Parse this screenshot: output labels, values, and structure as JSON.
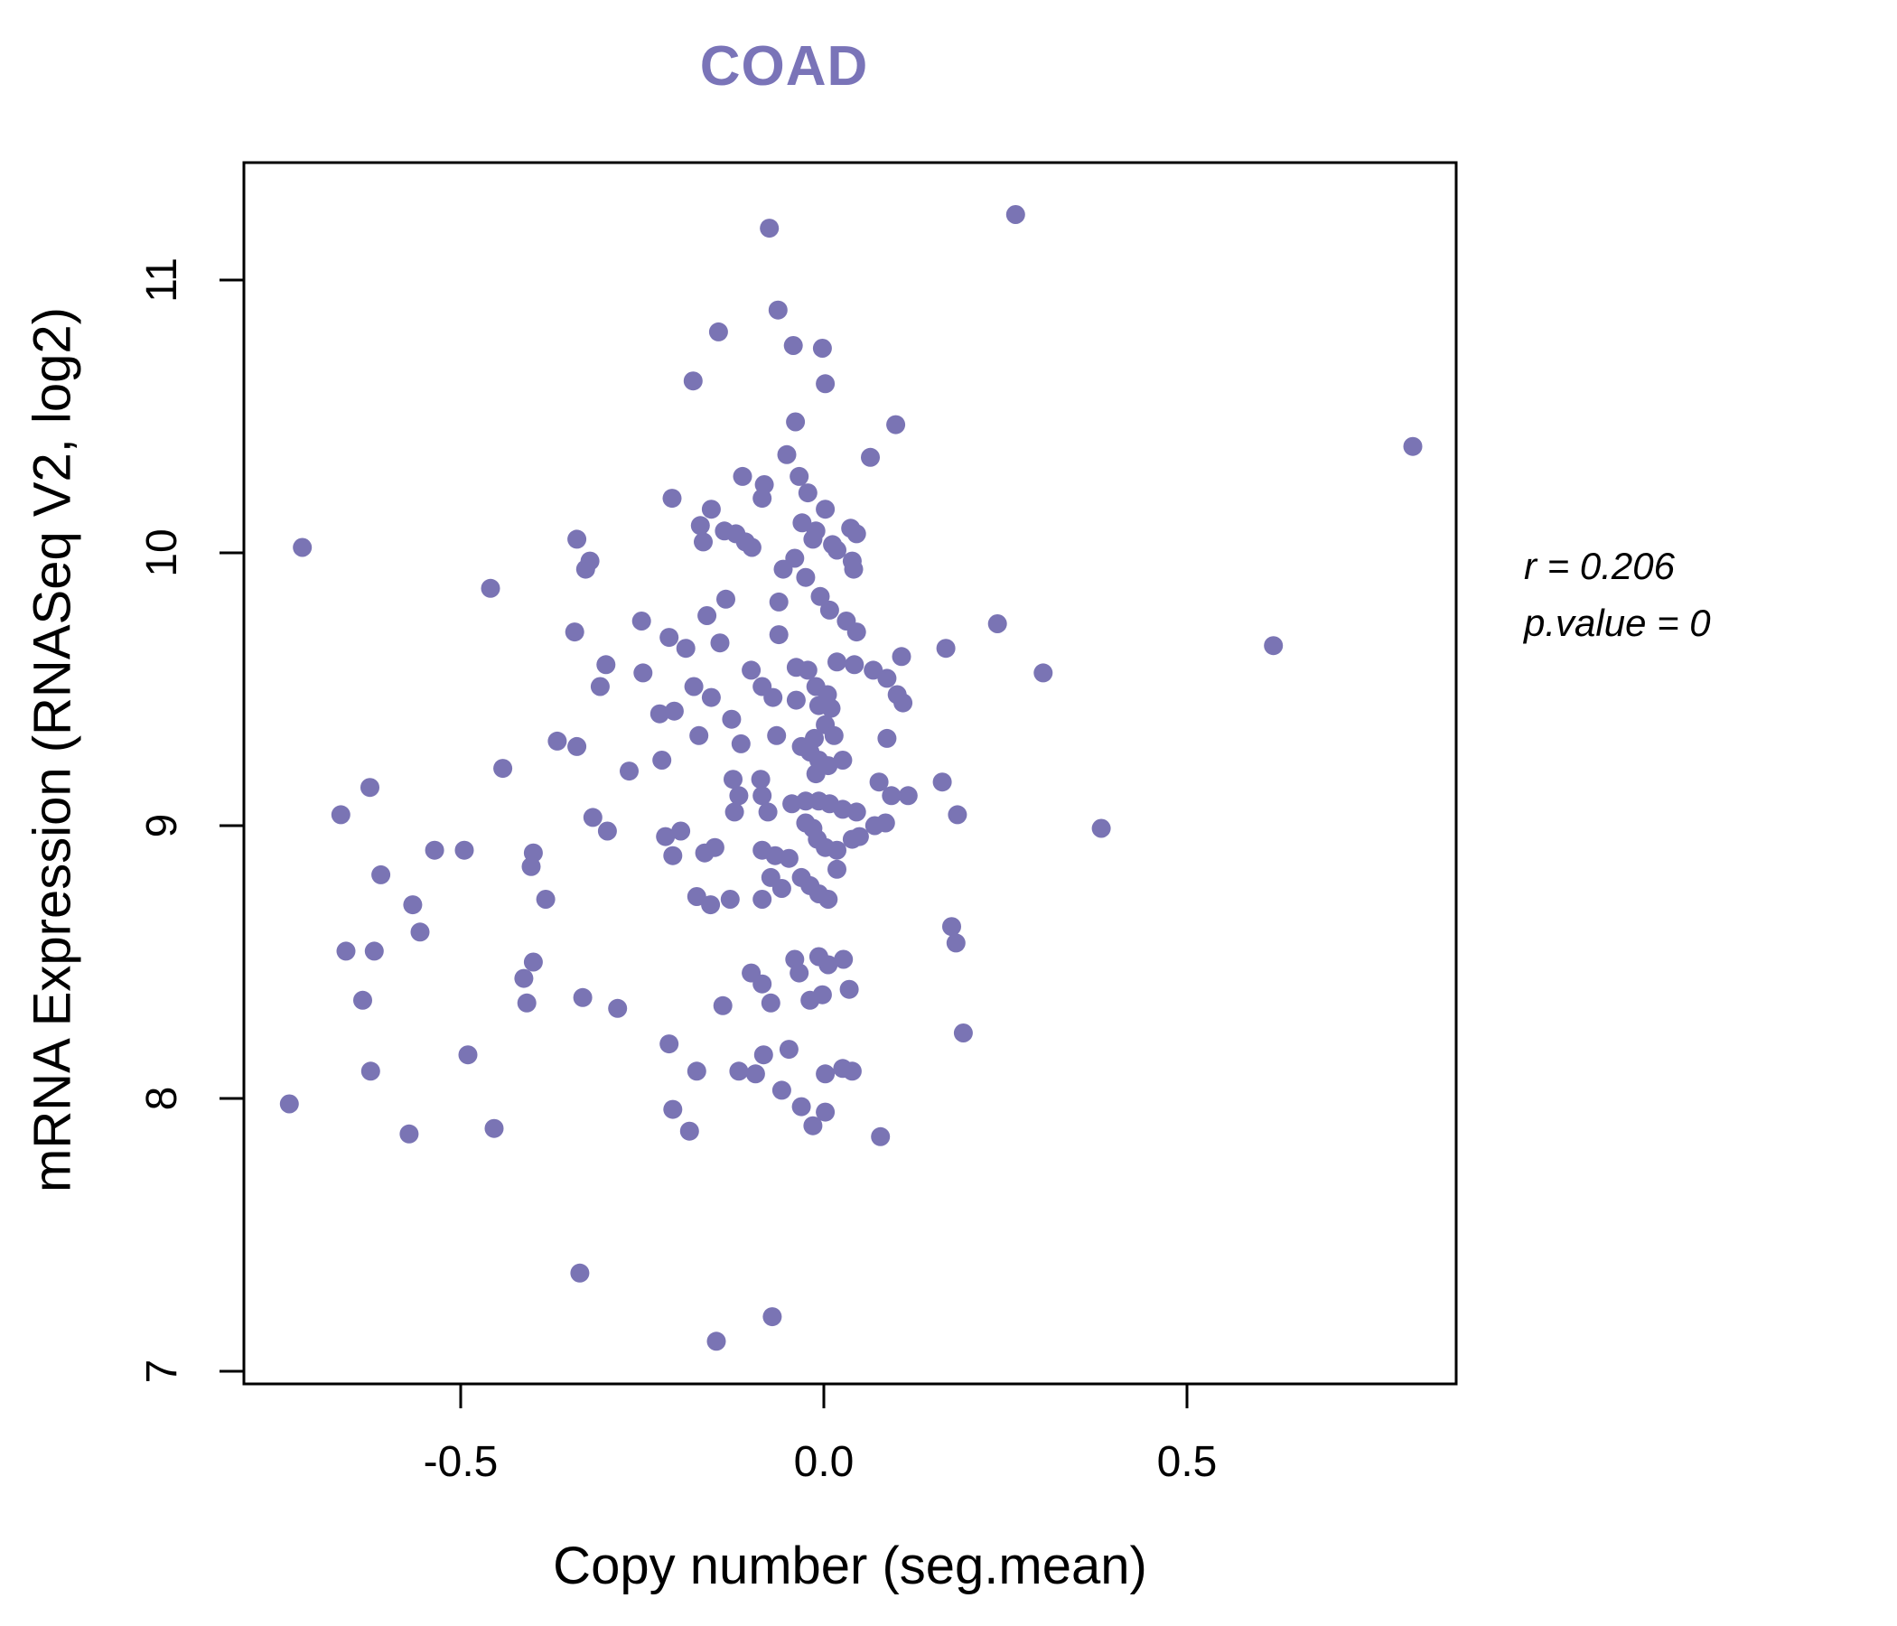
{
  "title": "COAD",
  "title_color": "#7a74b8",
  "annotation": {
    "line1": "r = 0.206",
    "line2": "p.value = 0"
  },
  "chart_data": {
    "type": "scatter",
    "title": "COAD",
    "xlabel": "Copy number (seg.mean)",
    "ylabel": "mRNA Expression (RNASeq V2, log2)",
    "x_ticks": [
      -0.5,
      0.0,
      0.5
    ],
    "x_tick_labels": [
      "-0.5",
      "0.0",
      "0.5"
    ],
    "y_ticks": [
      7,
      8,
      9,
      10,
      11
    ],
    "y_tick_labels": [
      "7",
      "8",
      "9",
      "10",
      "11"
    ],
    "xlim": [
      -0.8,
      0.87
    ],
    "ylim": [
      6.96,
      11.43
    ],
    "grid": false,
    "legend": "none",
    "point_color": "#7a74b4",
    "axis_color": "#000000",
    "stats": {
      "r": 0.206,
      "p_value": 0
    },
    "points": [
      [
        -0.718,
        10.02
      ],
      [
        -0.34,
        10.05
      ],
      [
        -0.322,
        9.97
      ],
      [
        -0.075,
        11.19
      ],
      [
        0.264,
        11.24
      ],
      [
        -0.063,
        10.89
      ],
      [
        -0.145,
        10.81
      ],
      [
        -0.042,
        10.76
      ],
      [
        -0.002,
        10.75
      ],
      [
        -0.18,
        10.63
      ],
      [
        0.002,
        10.62
      ],
      [
        -0.039,
        10.48
      ],
      [
        0.099,
        10.47
      ],
      [
        0.064,
        10.35
      ],
      [
        -0.051,
        10.36
      ],
      [
        -0.034,
        10.28
      ],
      [
        -0.112,
        10.28
      ],
      [
        -0.082,
        10.25
      ],
      [
        -0.022,
        10.22
      ],
      [
        -0.085,
        10.2
      ],
      [
        -0.209,
        10.2
      ],
      [
        -0.155,
        10.16
      ],
      [
        0.002,
        10.16
      ],
      [
        -0.03,
        10.11
      ],
      [
        -0.011,
        10.08
      ],
      [
        0.037,
        10.09
      ],
      [
        0.012,
        10.03
      ],
      [
        -0.17,
        10.1
      ],
      [
        -0.166,
        10.04
      ],
      [
        -0.137,
        10.08
      ],
      [
        -0.121,
        10.07
      ],
      [
        -0.108,
        10.04
      ],
      [
        -0.099,
        10.02
      ],
      [
        -0.04,
        9.98
      ],
      [
        -0.015,
        10.05
      ],
      [
        0.018,
        10.01
      ],
      [
        0.045,
        10.07
      ],
      [
        0.039,
        9.97
      ],
      [
        -0.056,
        9.94
      ],
      [
        -0.025,
        9.91
      ],
      [
        0.041,
        9.94
      ],
      [
        -0.328,
        9.94
      ],
      [
        -0.459,
        9.87
      ],
      [
        -0.343,
        9.71
      ],
      [
        -0.251,
        9.75
      ],
      [
        -0.3,
        9.59
      ],
      [
        -0.308,
        9.51
      ],
      [
        -0.249,
        9.56
      ],
      [
        -0.367,
        9.31
      ],
      [
        -0.34,
        9.29
      ],
      [
        -0.442,
        9.21
      ],
      [
        -0.268,
        9.2
      ],
      [
        -0.625,
        9.14
      ],
      [
        -0.665,
        9.04
      ],
      [
        -0.318,
        9.03
      ],
      [
        -0.298,
        8.98
      ],
      [
        -0.536,
        8.91
      ],
      [
        -0.495,
        8.91
      ],
      [
        -0.4,
        8.9
      ],
      [
        -0.403,
        8.85
      ],
      [
        -0.61,
        8.82
      ],
      [
        -0.383,
        8.73
      ],
      [
        -0.566,
        8.71
      ],
      [
        -0.556,
        8.61
      ],
      [
        -0.658,
        8.54
      ],
      [
        -0.619,
        8.54
      ],
      [
        -0.161,
        9.77
      ],
      [
        -0.135,
        9.83
      ],
      [
        -0.062,
        9.82
      ],
      [
        -0.005,
        9.84
      ],
      [
        0.008,
        9.79
      ],
      [
        0.031,
        9.75
      ],
      [
        0.239,
        9.74
      ],
      [
        -0.213,
        9.69
      ],
      [
        -0.19,
        9.65
      ],
      [
        -0.143,
        9.67
      ],
      [
        -0.062,
        9.7
      ],
      [
        0.045,
        9.71
      ],
      [
        0.107,
        9.62
      ],
      [
        0.168,
        9.65
      ],
      [
        -0.179,
        9.51
      ],
      [
        -0.155,
        9.47
      ],
      [
        -0.1,
        9.57
      ],
      [
        -0.085,
        9.51
      ],
      [
        -0.038,
        9.58
      ],
      [
        -0.022,
        9.57
      ],
      [
        0.018,
        9.6
      ],
      [
        0.042,
        9.59
      ],
      [
        0.068,
        9.57
      ],
      [
        0.087,
        9.54
      ],
      [
        0.101,
        9.48
      ],
      [
        -0.011,
        9.51
      ],
      [
        0.005,
        9.48
      ],
      [
        -0.07,
        9.47
      ],
      [
        -0.038,
        9.46
      ],
      [
        -0.007,
        9.44
      ],
      [
        0.01,
        9.43
      ],
      [
        0.109,
        9.45
      ],
      [
        0.302,
        9.56
      ],
      [
        -0.226,
        9.41
      ],
      [
        -0.206,
        9.42
      ],
      [
        -0.127,
        9.39
      ],
      [
        -0.065,
        9.33
      ],
      [
        0.002,
        9.37
      ],
      [
        0.014,
        9.33
      ],
      [
        0.087,
        9.32
      ],
      [
        -0.172,
        9.33
      ],
      [
        -0.013,
        9.32
      ],
      [
        -0.114,
        9.3
      ],
      [
        -0.223,
        9.24
      ],
      [
        -0.031,
        9.29
      ],
      [
        -0.019,
        9.27
      ],
      [
        -0.007,
        9.24
      ],
      [
        0.006,
        9.22
      ],
      [
        0.026,
        9.24
      ],
      [
        -0.011,
        9.19
      ],
      [
        -0.125,
        9.17
      ],
      [
        -0.087,
        9.17
      ],
      [
        -0.117,
        9.11
      ],
      [
        -0.085,
        9.11
      ],
      [
        -0.123,
        9.05
      ],
      [
        -0.077,
        9.05
      ],
      [
        -0.044,
        9.08
      ],
      [
        -0.025,
        9.09
      ],
      [
        -0.007,
        9.09
      ],
      [
        0.008,
        9.08
      ],
      [
        0.026,
        9.06
      ],
      [
        0.045,
        9.05
      ],
      [
        0.076,
        9.16
      ],
      [
        0.093,
        9.11
      ],
      [
        0.116,
        9.11
      ],
      [
        0.163,
        9.16
      ],
      [
        0.184,
        9.04
      ],
      [
        -0.218,
        8.96
      ],
      [
        -0.197,
        8.98
      ],
      [
        -0.208,
        8.89
      ],
      [
        -0.164,
        8.9
      ],
      [
        -0.15,
        8.92
      ],
      [
        -0.085,
        8.91
      ],
      [
        -0.067,
        8.89
      ],
      [
        -0.048,
        8.88
      ],
      [
        -0.025,
        9.01
      ],
      [
        -0.015,
        8.99
      ],
      [
        -0.009,
        8.95
      ],
      [
        0.002,
        8.92
      ],
      [
        0.018,
        8.91
      ],
      [
        0.039,
        8.95
      ],
      [
        0.049,
        8.96
      ],
      [
        0.07,
        9.0
      ],
      [
        0.085,
        9.01
      ],
      [
        -0.175,
        8.74
      ],
      [
        -0.156,
        8.71
      ],
      [
        -0.129,
        8.73
      ],
      [
        0.176,
        8.63
      ],
      [
        0.182,
        8.57
      ],
      [
        -0.031,
        8.81
      ],
      [
        -0.019,
        8.78
      ],
      [
        -0.007,
        8.75
      ],
      [
        0.006,
        8.73
      ],
      [
        0.018,
        8.84
      ],
      [
        -0.073,
        8.81
      ],
      [
        -0.058,
        8.77
      ],
      [
        -0.085,
        8.73
      ],
      [
        -0.1,
        8.46
      ],
      [
        -0.04,
        8.51
      ],
      [
        -0.034,
        8.46
      ],
      [
        -0.007,
        8.52
      ],
      [
        0.006,
        8.49
      ],
      [
        0.027,
        8.51
      ],
      [
        -0.085,
        8.42
      ],
      [
        -0.073,
        8.35
      ],
      [
        -0.019,
        8.36
      ],
      [
        -0.002,
        8.38
      ],
      [
        0.035,
        8.4
      ],
      [
        0.619,
        9.66
      ],
      [
        0.382,
        8.99
      ],
      [
        -0.635,
        8.36
      ],
      [
        -0.413,
        8.44
      ],
      [
        -0.409,
        8.35
      ],
      [
        -0.4,
        8.5
      ],
      [
        -0.332,
        8.37
      ],
      [
        -0.284,
        8.33
      ],
      [
        -0.49,
        8.16
      ],
      [
        -0.624,
        8.1
      ],
      [
        -0.736,
        7.98
      ],
      [
        -0.571,
        7.87
      ],
      [
        -0.454,
        7.89
      ],
      [
        -0.336,
        7.36
      ],
      [
        -0.213,
        8.2
      ],
      [
        -0.139,
        8.34
      ],
      [
        0.192,
        8.24
      ],
      [
        -0.175,
        8.1
      ],
      [
        -0.117,
        8.1
      ],
      [
        -0.094,
        8.09
      ],
      [
        -0.083,
        8.16
      ],
      [
        -0.048,
        8.18
      ],
      [
        0.002,
        8.09
      ],
      [
        0.026,
        8.11
      ],
      [
        0.039,
        8.1
      ],
      [
        -0.058,
        8.03
      ],
      [
        -0.208,
        7.96
      ],
      [
        -0.185,
        7.88
      ],
      [
        -0.031,
        7.97
      ],
      [
        0.002,
        7.95
      ],
      [
        -0.015,
        7.9
      ],
      [
        0.078,
        7.86
      ],
      [
        -0.071,
        7.2
      ],
      [
        -0.148,
        7.11
      ],
      [
        0.811,
        10.39
      ]
    ]
  }
}
